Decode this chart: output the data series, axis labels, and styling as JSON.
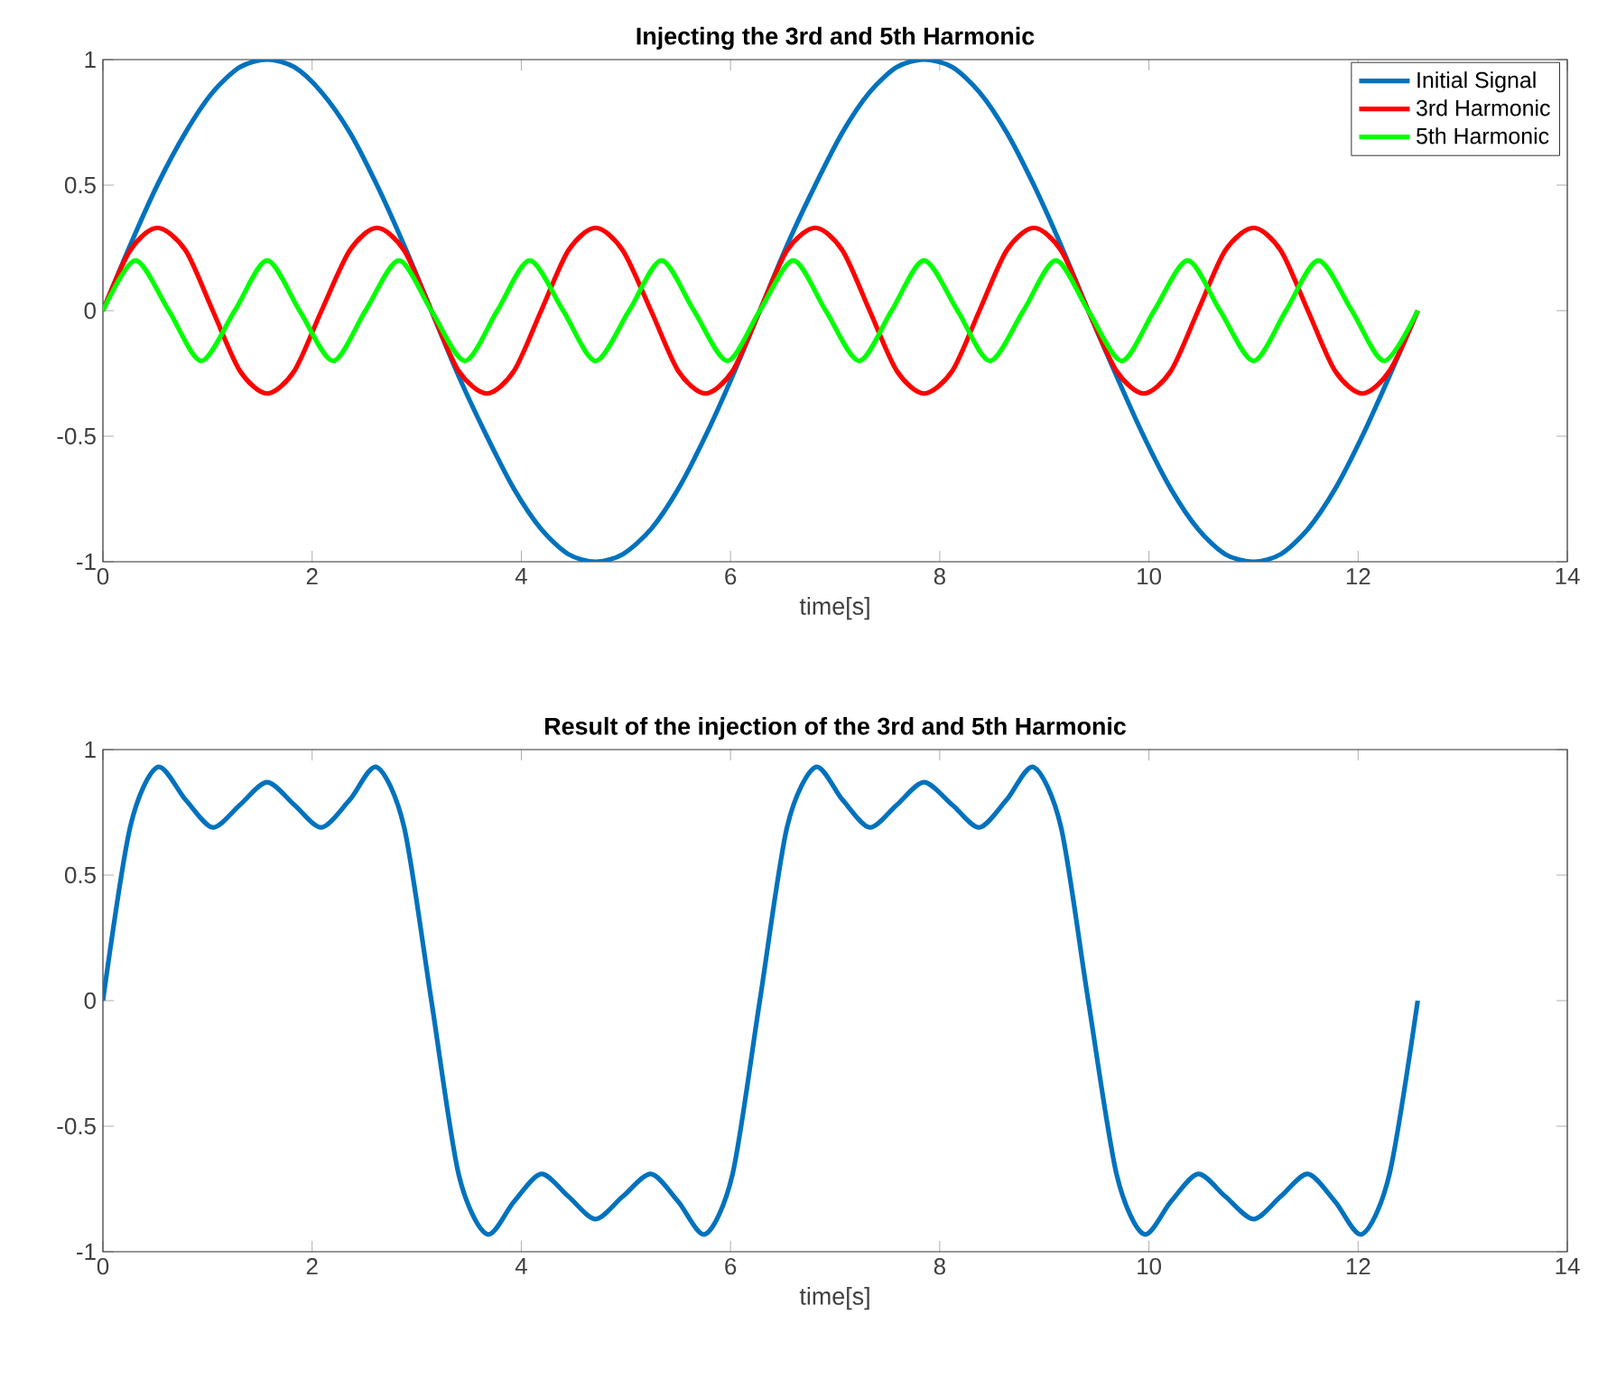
{
  "chart_data": [
    {
      "type": "line",
      "title": "Injecting the 3rd and 5th Harmonic",
      "xlabel": "time[s]",
      "xlim": [
        0,
        14
      ],
      "ylim": [
        -1,
        1
      ],
      "xticks": [
        0,
        2,
        4,
        6,
        8,
        10,
        12,
        14
      ],
      "yticks": [
        -1,
        -0.5,
        0,
        0.5,
        1
      ],
      "grid": false,
      "legend": "top right",
      "marker": "none",
      "line_style": "solid",
      "x": [
        0,
        0.26,
        0.52,
        0.79,
        1.05,
        1.31,
        1.57,
        1.83,
        2.09,
        2.36,
        2.62,
        2.88,
        3.14,
        3.4,
        3.67,
        3.93,
        4.19,
        4.45,
        4.71,
        4.97,
        5.24,
        5.5,
        5.76,
        6.02,
        6.28,
        6.54,
        6.81,
        7.07,
        7.33,
        7.59,
        7.85,
        8.12,
        8.38,
        8.64,
        8.9,
        9.16,
        9.42,
        9.69,
        9.95,
        10.21,
        10.47,
        10.73,
        11.0,
        11.26,
        11.52,
        11.78,
        12.04,
        12.3,
        12.57
      ],
      "series": [
        {
          "name": "Initial Signal",
          "color": "#0072bd",
          "values": [
            0,
            0.26,
            0.5,
            0.71,
            0.87,
            0.97,
            1,
            0.97,
            0.87,
            0.71,
            0.5,
            0.26,
            0,
            -0.26,
            -0.5,
            -0.71,
            -0.87,
            -0.97,
            -1,
            -0.97,
            -0.87,
            -0.71,
            -0.5,
            -0.26,
            0,
            0.26,
            0.5,
            0.71,
            0.87,
            0.97,
            1,
            0.97,
            0.87,
            0.71,
            0.5,
            0.26,
            0,
            -0.26,
            -0.5,
            -0.71,
            -0.87,
            -0.97,
            -1,
            -0.97,
            -0.87,
            -0.71,
            -0.5,
            -0.26,
            0
          ]
        },
        {
          "name": "3rd Harmonic",
          "color": "#ff0000",
          "values": [
            0,
            0.24,
            0.33,
            0.24,
            0,
            -0.24,
            -0.33,
            -0.24,
            0,
            0.24,
            0.33,
            0.24,
            0,
            -0.24,
            -0.33,
            -0.24,
            0,
            0.24,
            0.33,
            0.24,
            0,
            -0.24,
            -0.33,
            -0.24,
            0,
            0.24,
            0.33,
            0.24,
            0,
            -0.24,
            -0.33,
            -0.24,
            0,
            0.24,
            0.33,
            0.24,
            0,
            -0.24,
            -0.33,
            -0.24,
            0,
            0.24,
            0.33,
            0.24,
            0,
            -0.24,
            -0.33,
            -0.24,
            0
          ]
        },
        {
          "name": "5th Harmonic",
          "color": "#00ff00",
          "x": [
            0,
            0.31,
            0.63,
            0.94,
            1.26,
            1.57,
            1.88,
            2.2,
            2.51,
            2.83,
            3.14,
            3.46,
            3.77,
            4.08,
            4.4,
            4.71,
            5.03,
            5.34,
            5.65,
            5.97,
            6.28,
            6.6,
            6.91,
            7.23,
            7.54,
            7.85,
            8.17,
            8.48,
            8.8,
            9.11,
            9.42,
            9.74,
            10.05,
            10.37,
            10.68,
            11.0,
            11.31,
            11.62,
            11.94,
            12.25,
            12.57
          ],
          "values": [
            0,
            0.2,
            0,
            -0.2,
            0,
            0.2,
            0,
            -0.2,
            0,
            0.2,
            0,
            -0.2,
            0,
            0.2,
            0,
            -0.2,
            0,
            0.2,
            0,
            -0.2,
            0,
            0.2,
            0,
            -0.2,
            0,
            0.2,
            0,
            -0.2,
            0,
            0.2,
            0,
            -0.2,
            0,
            0.2,
            0,
            -0.2,
            0,
            0.2,
            0,
            -0.2,
            0
          ]
        }
      ]
    },
    {
      "type": "line",
      "title": "Result of the injection of the 3rd and 5th Harmonic",
      "xlabel": "time[s]",
      "xlim": [
        0,
        14
      ],
      "ylim": [
        -1,
        1
      ],
      "xticks": [
        0,
        2,
        4,
        6,
        8,
        10,
        12,
        14
      ],
      "yticks": [
        -1,
        -0.5,
        0,
        0.5,
        1
      ],
      "grid": false,
      "marker": "none",
      "line_style": "solid",
      "x": [
        0,
        0.26,
        0.52,
        0.79,
        1.05,
        1.31,
        1.57,
        1.83,
        2.09,
        2.36,
        2.62,
        2.88,
        3.14,
        3.4,
        3.67,
        3.93,
        4.19,
        4.45,
        4.71,
        4.97,
        5.24,
        5.5,
        5.76,
        6.02,
        6.28,
        6.54,
        6.81,
        7.07,
        7.33,
        7.59,
        7.85,
        8.12,
        8.38,
        8.64,
        8.9,
        9.16,
        9.42,
        9.69,
        9.95,
        10.21,
        10.47,
        10.73,
        11.0,
        11.26,
        11.52,
        11.78,
        12.04,
        12.3,
        12.57
      ],
      "series": [
        {
          "color": "#0072bd",
          "values": [
            0,
            0.69,
            0.93,
            0.8,
            0.69,
            0.78,
            0.87,
            0.78,
            0.69,
            0.8,
            0.93,
            0.69,
            0,
            -0.69,
            -0.93,
            -0.8,
            -0.69,
            -0.78,
            -0.87,
            -0.78,
            -0.69,
            -0.8,
            -0.93,
            -0.69,
            0,
            0.69,
            0.93,
            0.8,
            0.69,
            0.78,
            0.87,
            0.78,
            0.69,
            0.8,
            0.93,
            0.69,
            0,
            -0.69,
            -0.93,
            -0.8,
            -0.69,
            -0.78,
            -0.87,
            -0.78,
            -0.69,
            -0.8,
            -0.93,
            -0.69,
            0
          ]
        }
      ]
    }
  ]
}
